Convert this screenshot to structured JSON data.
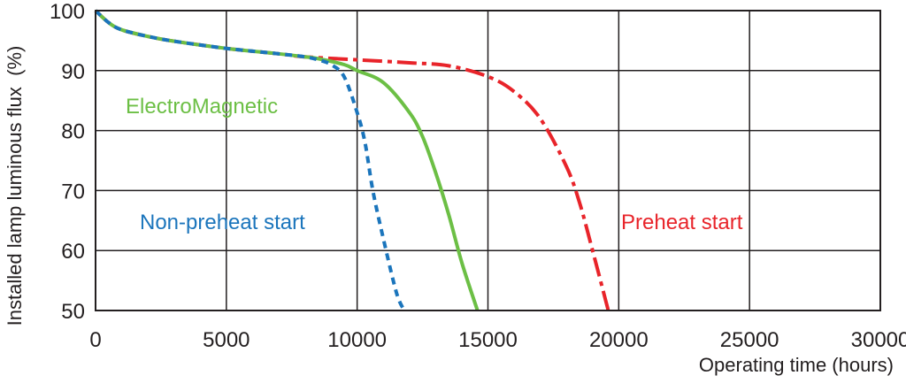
{
  "chart_data": {
    "type": "line",
    "title": "",
    "xlabel": "Operating time (hours)",
    "ylabel": "Installed lamp luminous flux  (%)",
    "xlim": [
      0,
      30000
    ],
    "ylim": [
      50,
      100
    ],
    "xticks": [
      "0",
      "5000",
      "10000",
      "15000",
      "20000",
      "25000",
      "30000"
    ],
    "yticks": [
      "50",
      "60",
      "70",
      "80",
      "90",
      "100"
    ],
    "grid": true,
    "series": [
      {
        "name": "Non-preheat start",
        "color": "#1b75bc",
        "style": "dashed",
        "x": [
          0,
          500,
          1000,
          2000,
          3000,
          5000,
          7000,
          8000,
          8500,
          9000,
          9500,
          10000,
          10300,
          10600,
          11000,
          11500,
          11800
        ],
        "y": [
          100,
          98,
          96.8,
          95.7,
          94.9,
          93.7,
          92.8,
          92.3,
          91.8,
          91,
          89,
          83,
          78,
          70,
          62,
          53,
          50
        ]
      },
      {
        "name": "ElectroMagnetic",
        "color": "#6cbf45",
        "style": "solid",
        "x": [
          0,
          500,
          1000,
          2000,
          3000,
          5000,
          7000,
          8000,
          8500,
          9500,
          10000,
          11000,
          12000,
          12500,
          13000,
          13500,
          14000,
          14600
        ],
        "y": [
          100,
          98,
          96.8,
          95.7,
          94.9,
          93.7,
          92.8,
          92.3,
          92,
          91,
          90,
          88,
          83,
          79,
          73,
          66,
          58,
          50
        ]
      },
      {
        "name": "Preheat start",
        "color": "#e8242a",
        "style": "dash-dot",
        "x": [
          0,
          500,
          1000,
          2000,
          3000,
          5000,
          7000,
          8000,
          10000,
          12000,
          13500,
          15000,
          16000,
          17000,
          18000,
          18500,
          19000,
          19600
        ],
        "y": [
          100,
          98,
          96.8,
          95.7,
          94.9,
          93.7,
          92.8,
          92.3,
          91.8,
          91.3,
          90.8,
          89,
          86.5,
          82,
          74,
          68,
          60,
          50
        ]
      }
    ]
  }
}
